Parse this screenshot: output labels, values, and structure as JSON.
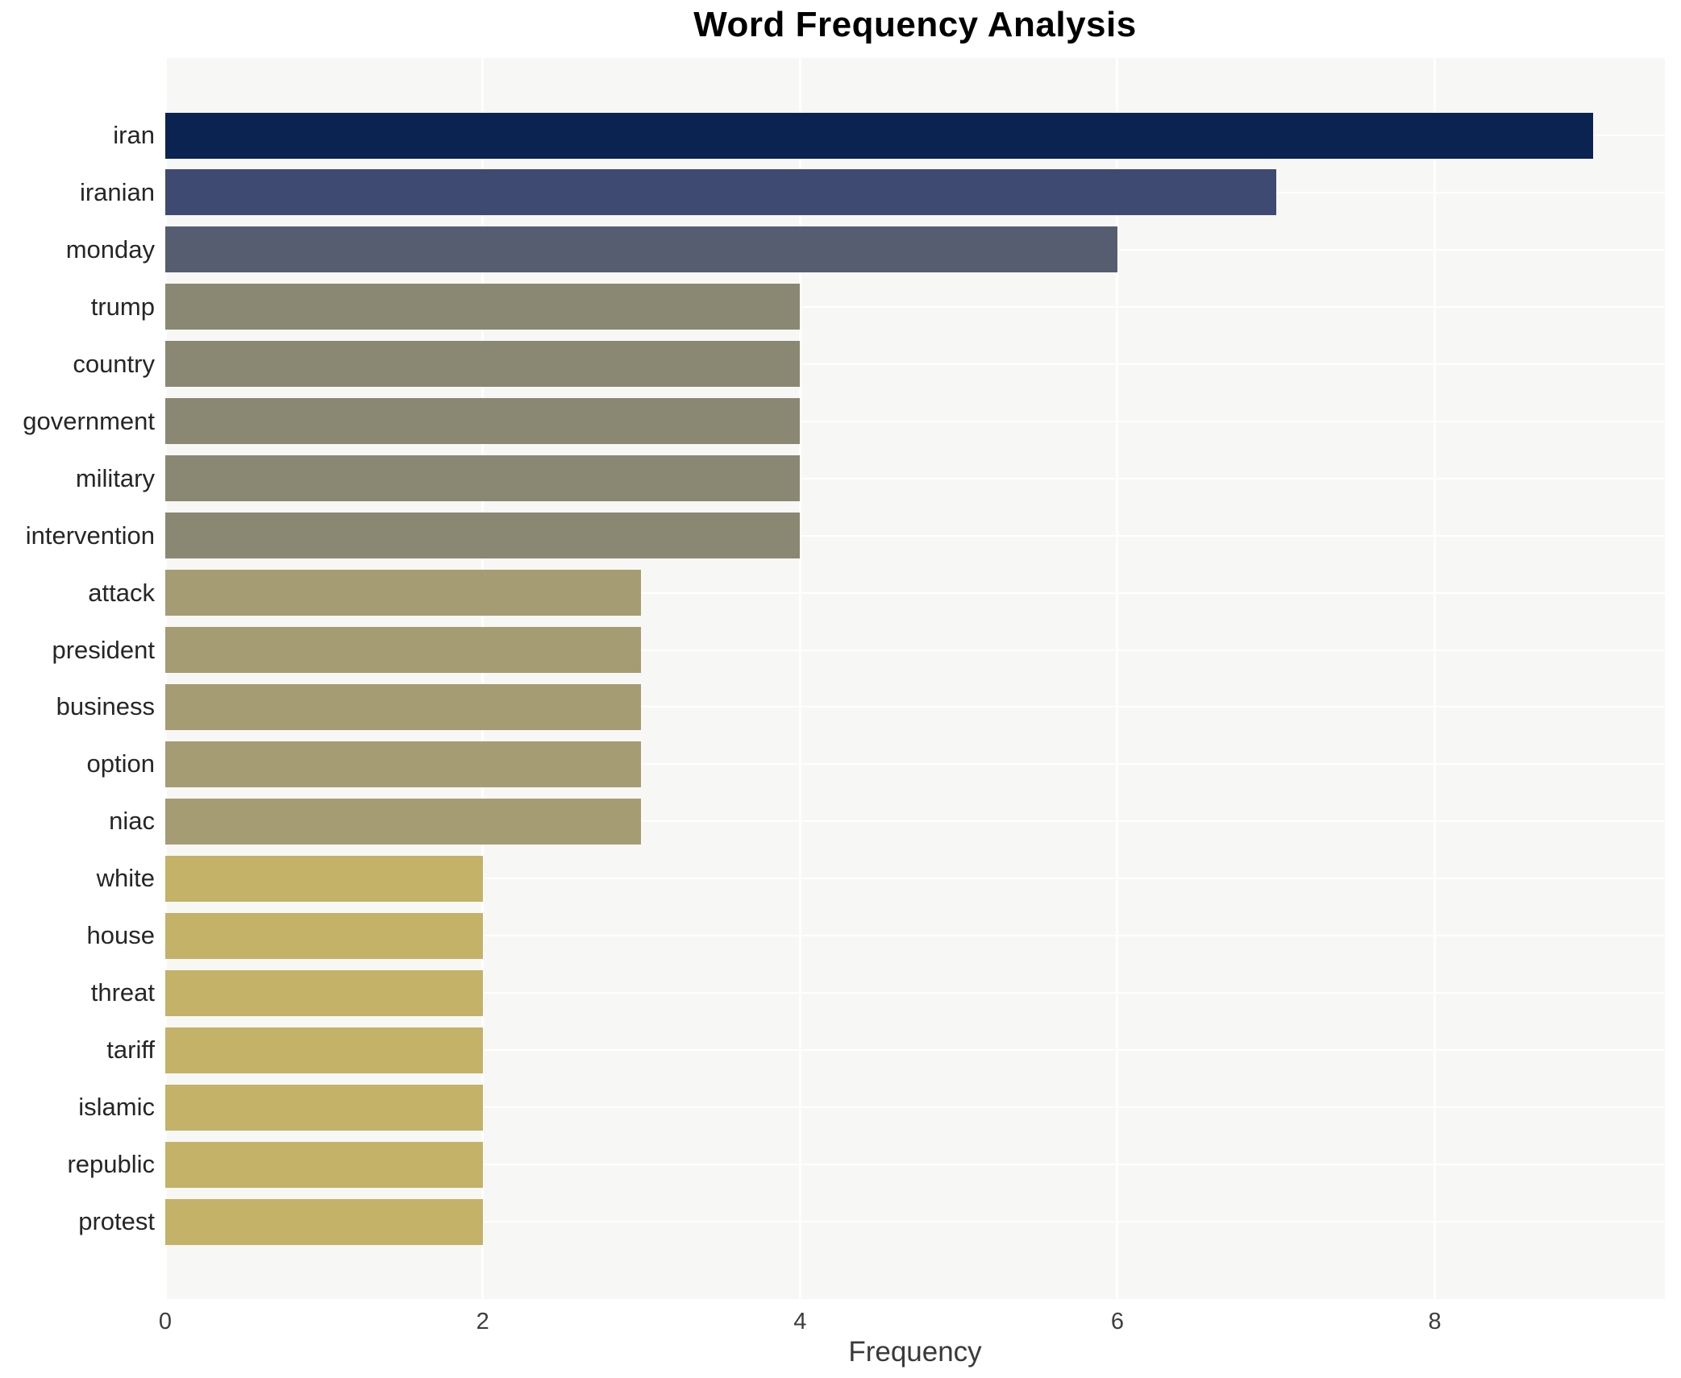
{
  "chart_data": {
    "type": "bar",
    "orientation": "horizontal",
    "title": "Word Frequency Analysis",
    "xlabel": "Frequency",
    "ylabel": "",
    "categories": [
      "iran",
      "iranian",
      "monday",
      "trump",
      "country",
      "government",
      "military",
      "intervention",
      "attack",
      "president",
      "business",
      "option",
      "niac",
      "white",
      "house",
      "threat",
      "tariff",
      "islamic",
      "republic",
      "protest"
    ],
    "values": [
      9,
      7,
      6,
      4,
      4,
      4,
      4,
      4,
      3,
      3,
      3,
      3,
      3,
      2,
      2,
      2,
      2,
      2,
      2,
      2
    ],
    "bar_colors": [
      "#0a2350",
      "#3e4a72",
      "#575d70",
      "#8a8873",
      "#8a8873",
      "#8a8873",
      "#8a8873",
      "#8a8873",
      "#a59c73",
      "#a59c73",
      "#a59c73",
      "#a59c73",
      "#a59c73",
      "#c3b268",
      "#c3b268",
      "#c3b268",
      "#c3b268",
      "#c3b268",
      "#c3b268",
      "#c3b268"
    ],
    "xticks": [
      0,
      2,
      4,
      6,
      8
    ],
    "xlim": [
      0,
      9.45
    ],
    "grid": true,
    "legend": "none",
    "plot_bg": "#f7f7f6",
    "grid_color": "#ffffff",
    "title_color": "#000000",
    "label_color": "#262626",
    "tick_color": "#3d3d3d"
  }
}
